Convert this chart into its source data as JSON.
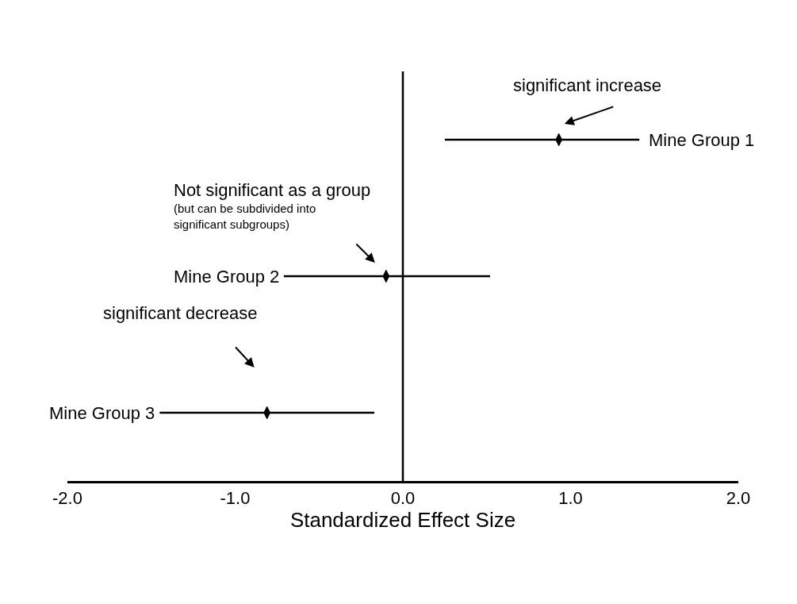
{
  "chart_data": {
    "type": "scatter",
    "orientation": "horizontal",
    "xlabel": "Standardized Effect Size",
    "categories": [
      "Mine Group 1",
      "Mine Group 2",
      "Mine Group 3"
    ],
    "values": [
      0.93,
      -0.1,
      -0.81
    ],
    "errors": [
      [
        0.25,
        1.41
      ],
      [
        -0.71,
        0.52
      ],
      [
        -1.45,
        -0.17
      ]
    ],
    "color": "#000000",
    "xlim": [
      -2,
      2
    ],
    "xticks": [
      {
        "value": -2,
        "label": "-2.0"
      },
      {
        "value": -1,
        "label": "-1.0"
      },
      {
        "value": 0,
        "label": "0.0"
      },
      {
        "value": 1,
        "label": "1.0"
      },
      {
        "value": 2,
        "label": "2.0"
      }
    ],
    "tick_labels": "x",
    "ref_lines": [
      {
        "axis": "x",
        "value": 0,
        "color": "#000000"
      }
    ],
    "annotations": [
      "significant increase",
      "Not significant as a group",
      "(but can be subdivided into\nsignificant subgroups)",
      "significant decrease"
    ],
    "marker": "diamond"
  }
}
